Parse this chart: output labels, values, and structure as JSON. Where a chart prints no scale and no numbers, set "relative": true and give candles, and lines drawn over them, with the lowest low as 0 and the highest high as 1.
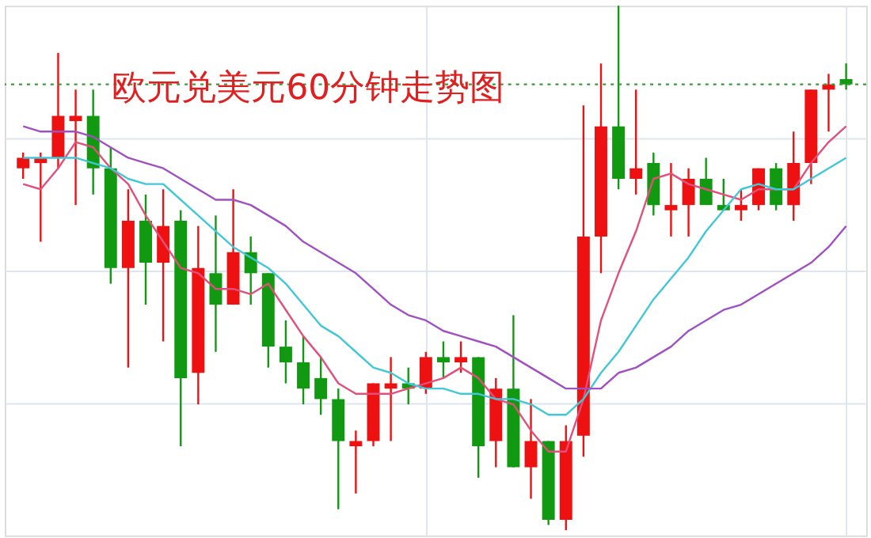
{
  "chart_data": {
    "type": "candlestick",
    "title": "欧元兑美元60分钟走势图",
    "relative": true,
    "grid": true,
    "categories": [
      null,
      null,
      null,
      null,
      null,
      null,
      null,
      null,
      null,
      null,
      null,
      null,
      null,
      null,
      null,
      null,
      null,
      null,
      null,
      null,
      null,
      null,
      null,
      null,
      null,
      null,
      null,
      null,
      null,
      null,
      null,
      null,
      null,
      null,
      null,
      null,
      null,
      null,
      null,
      null,
      null,
      null,
      null,
      null,
      null,
      null,
      null,
      null
    ],
    "ohlc": [
      [
        0.69,
        0.72,
        0.67,
        0.71
      ],
      [
        0.7,
        0.72,
        0.55,
        0.71
      ],
      [
        0.71,
        0.91,
        0.69,
        0.79
      ],
      [
        0.78,
        0.84,
        0.62,
        0.79
      ],
      [
        0.79,
        0.84,
        0.64,
        0.69
      ],
      [
        0.69,
        0.73,
        0.47,
        0.5
      ],
      [
        0.5,
        0.65,
        0.31,
        0.59
      ],
      [
        0.59,
        0.64,
        0.43,
        0.51
      ],
      [
        0.51,
        0.65,
        0.36,
        0.58
      ],
      [
        0.59,
        0.61,
        0.16,
        0.29
      ],
      [
        0.3,
        0.58,
        0.24,
        0.5
      ],
      [
        0.49,
        0.6,
        0.34,
        0.43
      ],
      [
        0.43,
        0.65,
        0.43,
        0.53
      ],
      [
        0.53,
        0.56,
        0.43,
        0.49
      ],
      [
        0.49,
        0.49,
        0.31,
        0.35
      ],
      [
        0.35,
        0.4,
        0.28,
        0.32
      ],
      [
        0.32,
        0.37,
        0.24,
        0.27
      ],
      [
        0.29,
        0.33,
        0.22,
        0.25
      ],
      [
        0.25,
        0.27,
        0.04,
        0.17
      ],
      [
        0.16,
        0.19,
        0.07,
        0.17
      ],
      [
        0.17,
        0.28,
        0.16,
        0.28
      ],
      [
        0.27,
        0.33,
        0.17,
        0.28
      ],
      [
        0.28,
        0.31,
        0.24,
        0.27
      ],
      [
        0.27,
        0.34,
        0.26,
        0.33
      ],
      [
        0.33,
        0.36,
        0.29,
        0.32
      ],
      [
        0.32,
        0.36,
        0.3,
        0.33
      ],
      [
        0.33,
        0.33,
        0.1,
        0.16
      ],
      [
        0.17,
        0.29,
        0.12,
        0.27
      ],
      [
        0.27,
        0.41,
        0.12,
        0.12
      ],
      [
        0.12,
        0.25,
        0.06,
        0.17
      ],
      [
        0.17,
        0.17,
        0.01,
        0.02
      ],
      [
        0.02,
        0.2,
        0,
        0.17
      ],
      [
        0.18,
        0.81,
        0.14,
        0.56
      ],
      [
        0.56,
        0.89,
        0.49,
        0.77
      ],
      [
        0.77,
        1,
        0.65,
        0.67
      ],
      [
        0.67,
        0.84,
        0.64,
        0.69
      ],
      [
        0.7,
        0.72,
        0.6,
        0.62
      ],
      [
        0.61,
        0.7,
        0.56,
        0.62
      ],
      [
        0.62,
        0.69,
        0.56,
        0.67
      ],
      [
        0.67,
        0.71,
        0.62,
        0.62
      ],
      [
        0.62,
        0.67,
        0.61,
        0.61
      ],
      [
        0.61,
        0.65,
        0.59,
        0.62
      ],
      [
        0.62,
        0.69,
        0.61,
        0.69
      ],
      [
        0.69,
        0.7,
        0.61,
        0.62
      ],
      [
        0.62,
        0.76,
        0.59,
        0.7
      ],
      [
        0.7,
        0.84,
        0.66,
        0.84
      ],
      [
        0.84,
        0.87,
        0.76,
        0.85
      ],
      [
        0.86,
        0.89,
        0.84,
        0.85
      ]
    ],
    "colors": [
      "#ee1111",
      "#ee1111",
      "#ee1111",
      "#ee1111",
      "#119911",
      "#119911",
      "#ee1111",
      "#119911",
      "#ee1111",
      "#119911",
      "#ee1111",
      "#119911",
      "#ee1111",
      "#119911",
      "#119911",
      "#119911",
      "#119911",
      "#119911",
      "#119911",
      "#ee1111",
      "#ee1111",
      "#ee1111",
      "#119911",
      "#ee1111",
      "#119911",
      "#ee1111",
      "#119911",
      "#ee1111",
      "#119911",
      "#ee1111",
      "#119911",
      "#ee1111",
      "#ee1111",
      "#ee1111",
      "#119911",
      "#ee1111",
      "#119911",
      "#ee1111",
      "#ee1111",
      "#119911",
      "#119911",
      "#ee1111",
      "#ee1111",
      "#119911",
      "#ee1111",
      "#ee1111",
      "#ee1111",
      "#119911"
    ],
    "series": [
      {
        "type": "line",
        "color": "#e0507a",
        "values": [
          0.66,
          0.65,
          0.69,
          0.74,
          0.73,
          0.69,
          0.66,
          0.6,
          0.55,
          0.5,
          0.49,
          0.46,
          0.46,
          0.45,
          0.47,
          0.42,
          0.37,
          0.33,
          0.28,
          0.26,
          0.26,
          0.26,
          0.27,
          0.28,
          0.29,
          0.31,
          0.29,
          0.25,
          0.24,
          0.19,
          0.15,
          0.15,
          0.25,
          0.4,
          0.49,
          0.57,
          0.67,
          0.68,
          0.66,
          0.65,
          0.64,
          0.63,
          0.65,
          0.65,
          0.65,
          0.7,
          0.74,
          0.77
        ]
      },
      {
        "type": "line",
        "color": "#40c8d8",
        "values": [
          0.71,
          0.71,
          0.71,
          0.71,
          0.7,
          0.69,
          0.67,
          0.66,
          0.66,
          0.63,
          0.6,
          0.57,
          0.54,
          0.52,
          0.5,
          0.47,
          0.43,
          0.39,
          0.37,
          0.34,
          0.31,
          0.3,
          0.28,
          0.27,
          0.27,
          0.26,
          0.26,
          0.25,
          0.25,
          0.24,
          0.22,
          0.22,
          0.25,
          0.3,
          0.34,
          0.39,
          0.44,
          0.48,
          0.52,
          0.57,
          0.61,
          0.65,
          0.66,
          0.65,
          0.65,
          0.67,
          0.69,
          0.71
        ]
      },
      {
        "type": "line",
        "color": "#a050c0",
        "values": [
          0.77,
          0.76,
          0.76,
          0.76,
          0.75,
          0.73,
          0.71,
          0.7,
          0.69,
          0.67,
          0.65,
          0.63,
          0.63,
          0.62,
          0.6,
          0.58,
          0.55,
          0.53,
          0.51,
          0.49,
          0.46,
          0.43,
          0.41,
          0.4,
          0.38,
          0.37,
          0.36,
          0.35,
          0.33,
          0.31,
          0.29,
          0.27,
          0.27,
          0.27,
          0.3,
          0.31,
          0.33,
          0.35,
          0.38,
          0.4,
          0.42,
          0.43,
          0.45,
          0.47,
          0.49,
          0.51,
          0.54,
          0.58
        ]
      }
    ],
    "ref_lines": [
      {
        "axis": "y",
        "value": 0.85,
        "color": "#3a9a3a",
        "line_style": "dotted"
      }
    ]
  }
}
